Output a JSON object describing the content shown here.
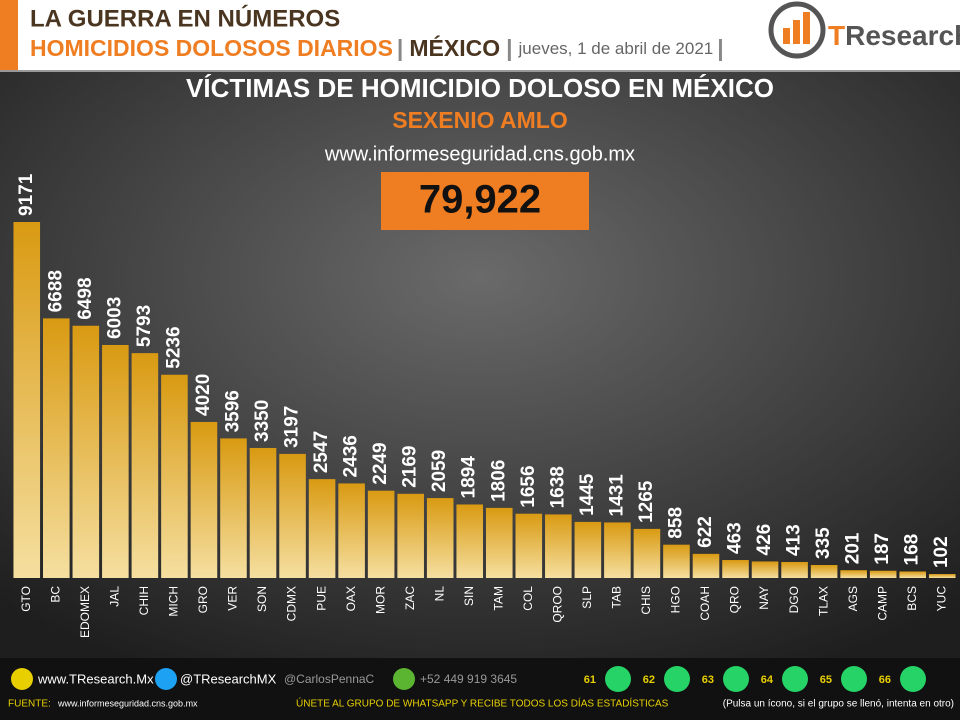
{
  "header": {
    "kicker": "LA GUERRA EN NÚMEROS",
    "headline": "HOMICIDIOS DOLOSOS DIARIOS",
    "region": "MÉXICO",
    "date": "jueves, 1 de abril de 2021",
    "logo_t": "T",
    "logo_rest": "Research"
  },
  "chart_data": {
    "type": "bar",
    "title": "VÍCTIMAS DE HOMICIDIO DOLOSO EN MÉXICO",
    "subtitle": "SEXENIO AMLO",
    "source_url": "www.informeseguridad.cns.gob.mx",
    "total": "79,922",
    "categories": [
      "GTO",
      "BC",
      "EDOMEX",
      "JAL",
      "CHIH",
      "MICH",
      "GRO",
      "VER",
      "SON",
      "CDMX",
      "PUE",
      "OAX",
      "MOR",
      "ZAC",
      "NL",
      "SIN",
      "TAM",
      "COL",
      "QROO",
      "SLP",
      "TAB",
      "CHIS",
      "HGO",
      "COAH",
      "QRO",
      "NAY",
      "DGO",
      "TLAX",
      "AGS",
      "CAMP",
      "BCS",
      "YUC"
    ],
    "values": [
      9171,
      6688,
      6498,
      6003,
      5793,
      5236,
      4020,
      3596,
      3350,
      3197,
      2547,
      2436,
      2249,
      2169,
      2059,
      1894,
      1806,
      1656,
      1638,
      1445,
      1431,
      1265,
      858,
      622,
      463,
      426,
      413,
      335,
      201,
      187,
      168,
      102
    ],
    "color": "#e0a21a"
  },
  "footer": {
    "website": "www.TResearch.Mx",
    "twitter": "@TResearchMX",
    "twitter2": "@CarlosPennaC",
    "phone": "+52 449 919 3645",
    "groups": [
      "61",
      "62",
      "63",
      "64",
      "65",
      "66"
    ],
    "source_label": "FUENTE:",
    "source_url": "www.informeseguridad.cns.gob.mx",
    "cta": "ÚNETE  AL GRUPO DE WHATSAPP Y RECIBE  TODOS LOS DÍAS ESTADÍSTICAS",
    "note": "(Pulsa un ícono, si el grupo se llenó, intenta en otro)"
  }
}
